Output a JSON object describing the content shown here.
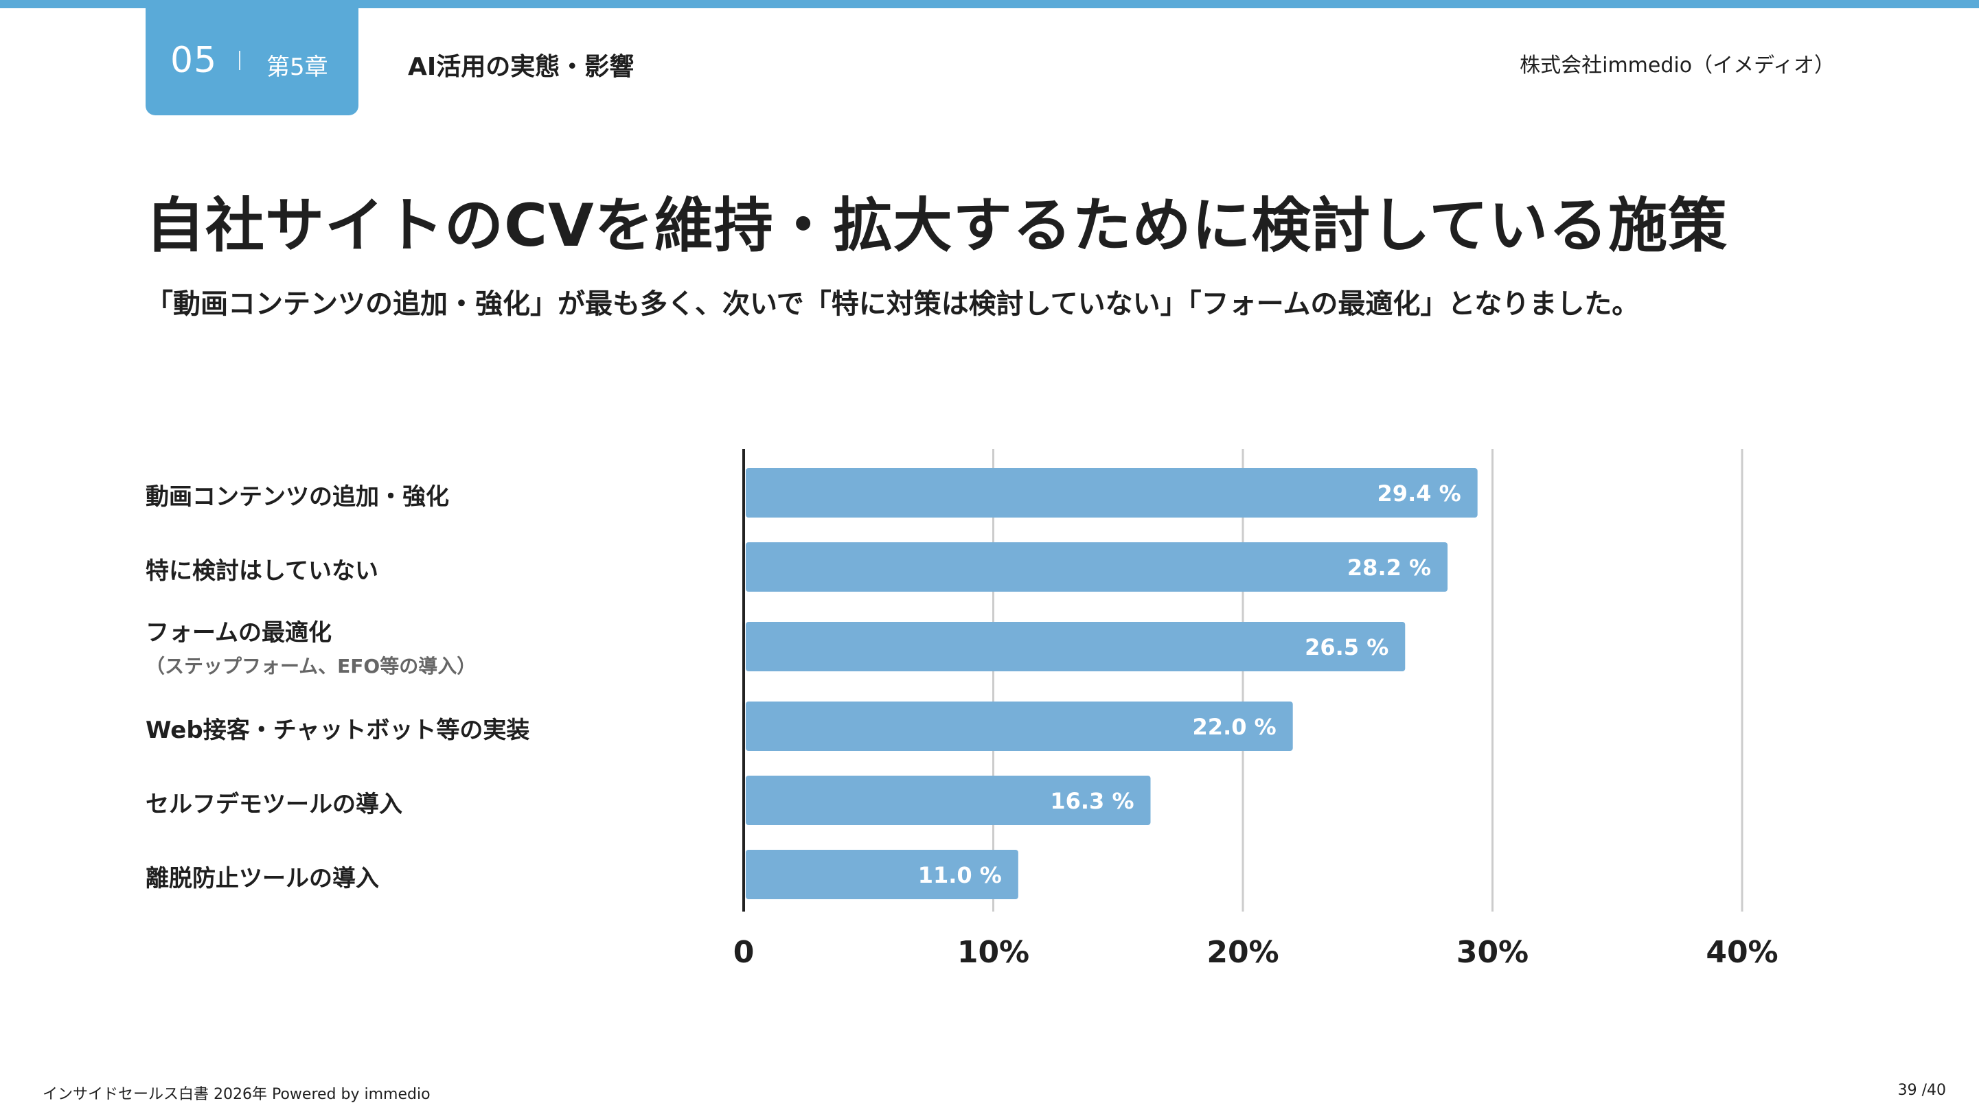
{
  "header": {
    "chapter_number": "05",
    "chapter_label": "第5章",
    "section_title": "AI活用の実態・影響",
    "company": "株式会社immedio（イメディオ）"
  },
  "main_title": "自社サイトのCVを維持・拡大するために検討している施策",
  "subtitle": "「動画コンテンツの追加・強化」が最も多く、次いで「特に対策は検討していない」「フォームの最適化」となりました。",
  "colors": {
    "accent": "#5aaad8",
    "bar": "#77afd8",
    "grid": "#cccccc",
    "axis": "#222222"
  },
  "chart_data": {
    "type": "bar",
    "orientation": "horizontal",
    "categories": [
      "動画コンテンツの追加・強化",
      "特に検討はしていない",
      "フォームの最適化",
      "Web接客・チャットボット等の実装",
      "セルフデモツールの導入",
      "離脱防止ツールの導入"
    ],
    "category_sublabels": [
      "",
      "",
      "（ステップフォーム、EFO等の導入）",
      "",
      "",
      ""
    ],
    "values": [
      29.4,
      28.2,
      26.5,
      22.0,
      16.3,
      11.0
    ],
    "data_labels": [
      "29.4 %",
      "28.2 %",
      "26.5 %",
      "22.0 %",
      "16.3 %",
      "11.0 %"
    ],
    "xlim": [
      0,
      40
    ],
    "x_ticks": [
      0,
      10,
      20,
      30,
      40
    ],
    "x_tick_labels": [
      "0",
      "10%",
      "20%",
      "30%",
      "40%"
    ],
    "grid": true
  },
  "footer": {
    "source": "インサイドセールス白書 2026年 Powered by immedio",
    "page": "39 /40"
  }
}
